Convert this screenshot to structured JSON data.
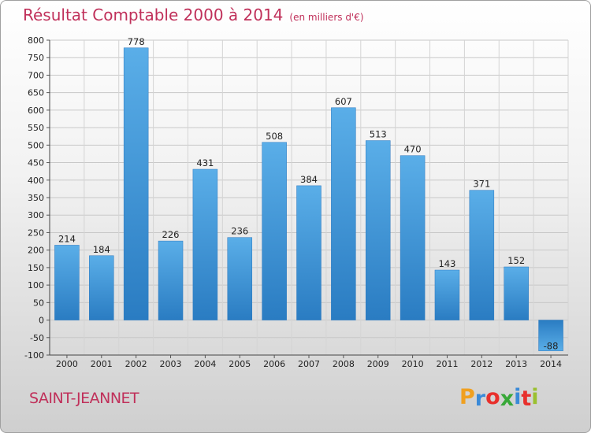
{
  "title": "Résultat Comptable 2000 à 2014",
  "subtitle": "(en milliers d'€)",
  "commune": "SAINT-JEANNET",
  "brand": {
    "letters": [
      "P",
      "r",
      "o",
      "x",
      "i",
      "t",
      "i"
    ],
    "colors": [
      "#f0a020",
      "#3a8ad8",
      "#e8302c",
      "#38a838",
      "#3a8ad8",
      "#e8302c",
      "#9ac030"
    ]
  },
  "colors": {
    "bar": "#4a9fe0",
    "bar_dark": "#2a78c0",
    "title": "#c0305a"
  },
  "chart_data": {
    "type": "bar",
    "title": "Résultat Comptable 2000 à 2014",
    "subtitle": "(en milliers d'€)",
    "categories": [
      "2000",
      "2001",
      "2002",
      "2003",
      "2004",
      "2005",
      "2006",
      "2007",
      "2008",
      "2009",
      "2010",
      "2011",
      "2012",
      "2013",
      "2014"
    ],
    "values": [
      214,
      184,
      778,
      226,
      431,
      236,
      508,
      384,
      607,
      513,
      470,
      143,
      371,
      152,
      -88
    ],
    "ylim": [
      -100,
      800
    ],
    "yticks": [
      -100,
      -50,
      0,
      50,
      100,
      150,
      200,
      250,
      300,
      350,
      400,
      450,
      500,
      550,
      600,
      650,
      700,
      750,
      800
    ],
    "grid": true,
    "legend": "none"
  }
}
